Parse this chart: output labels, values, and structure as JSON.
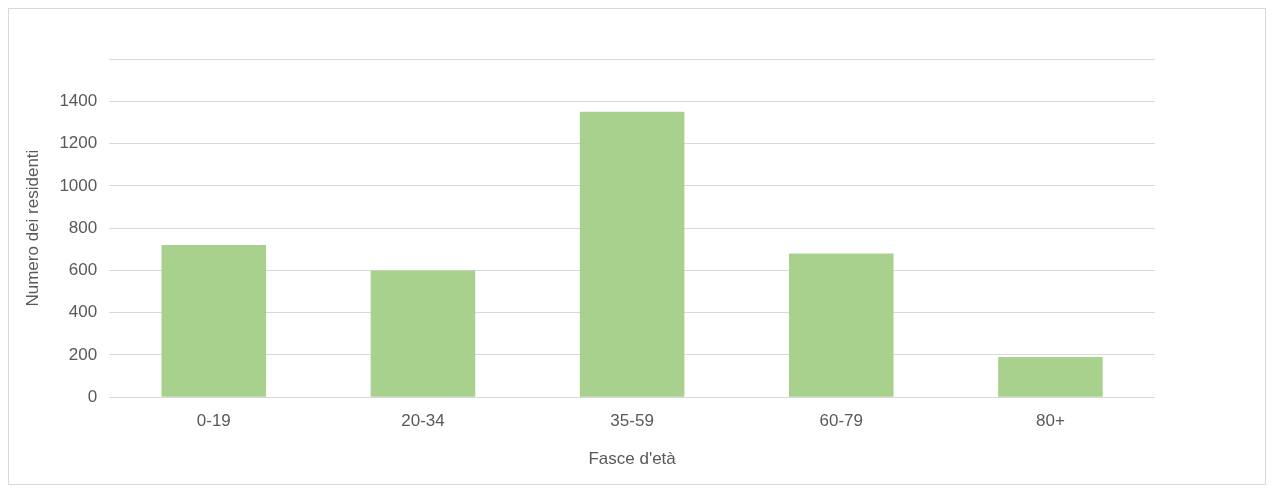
{
  "chart_data": {
    "type": "bar",
    "xlabel": "Fasce d'età",
    "ylabel": "Numero dei residenti",
    "categories": [
      "0-19",
      "20-34",
      "35-59",
      "60-79",
      "80+"
    ],
    "values": [
      720,
      600,
      1350,
      680,
      190
    ],
    "color": "#a9d18e",
    "ylim": [
      0,
      1600
    ],
    "yticks": [
      0,
      200,
      400,
      600,
      800,
      1000,
      1200,
      1400,
      {
        "value": 1600,
        "label": null
      }
    ],
    "grid": "y",
    "legend": false
  }
}
